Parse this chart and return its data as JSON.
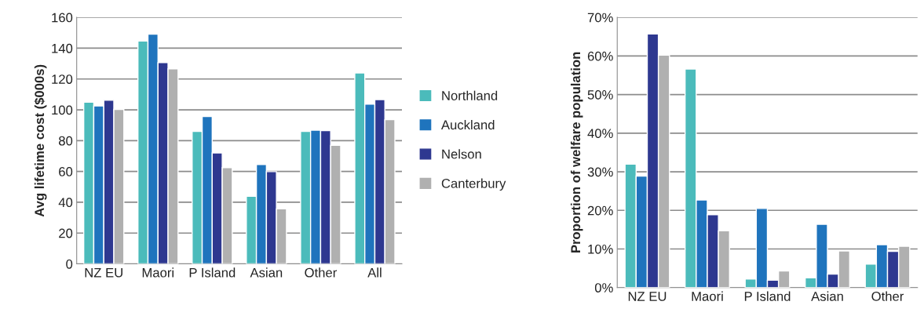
{
  "chart_data": [
    {
      "type": "bar",
      "ylabel": "Avg lifetime cost ($000s)",
      "categories": [
        "NZ EU",
        "Maori",
        "P Island",
        "Asian",
        "Other",
        "All"
      ],
      "series": [
        {
          "name": "Northland",
          "color": "#4bbbbb",
          "values": [
            105,
            144.7,
            86,
            43.9,
            86,
            123.9
          ]
        },
        {
          "name": "Auckland",
          "color": "#1f74bd",
          "values": [
            102.5,
            149.1,
            95.7,
            64.5,
            86.8,
            103.7
          ]
        },
        {
          "name": "Nelson",
          "color": "#2e3890",
          "values": [
            106.2,
            130.7,
            72,
            59.9,
            86.5,
            106.6
          ]
        },
        {
          "name": "Canterbury",
          "color": "#b0b0b0",
          "values": [
            100.3,
            126.6,
            62.5,
            35.7,
            76.9,
            93.6
          ]
        }
      ],
      "ylim": [
        0,
        160
      ],
      "yticks": [
        0,
        20,
        40,
        60,
        80,
        100,
        120,
        140,
        160
      ],
      "grid": "y",
      "legend": "right"
    },
    {
      "type": "bar",
      "ylabel": "Proportion of welfare population",
      "categories": [
        "NZ EU",
        "Maori",
        "P Island",
        "Asian",
        "Other"
      ],
      "series": [
        {
          "color": "#4bbbbb",
          "values": [
            32.0,
            56.6,
            2.2,
            2.5,
            6.1
          ]
        },
        {
          "color": "#1f74bd",
          "values": [
            28.9,
            22.7,
            20.5,
            16.4,
            11.1
          ]
        },
        {
          "color": "#2e3890",
          "values": [
            65.7,
            18.9,
            1.9,
            3.5,
            9.4
          ]
        },
        {
          "color": "#b0b0b0",
          "values": [
            60.2,
            14.7,
            4.3,
            9.5,
            10.7
          ]
        }
      ],
      "ylim": [
        0,
        70
      ],
      "yticks": [
        {
          "value": 0,
          "label": "0%"
        },
        {
          "value": 10,
          "label": "10%"
        },
        {
          "value": 20,
          "label": "20%"
        },
        {
          "value": 30,
          "label": "30%"
        },
        {
          "value": 40,
          "label": "40%"
        },
        {
          "value": 50,
          "label": "50%"
        },
        {
          "value": 60,
          "label": "60%"
        },
        {
          "value": 70,
          "label": "70%"
        }
      ],
      "grid": "y"
    }
  ]
}
